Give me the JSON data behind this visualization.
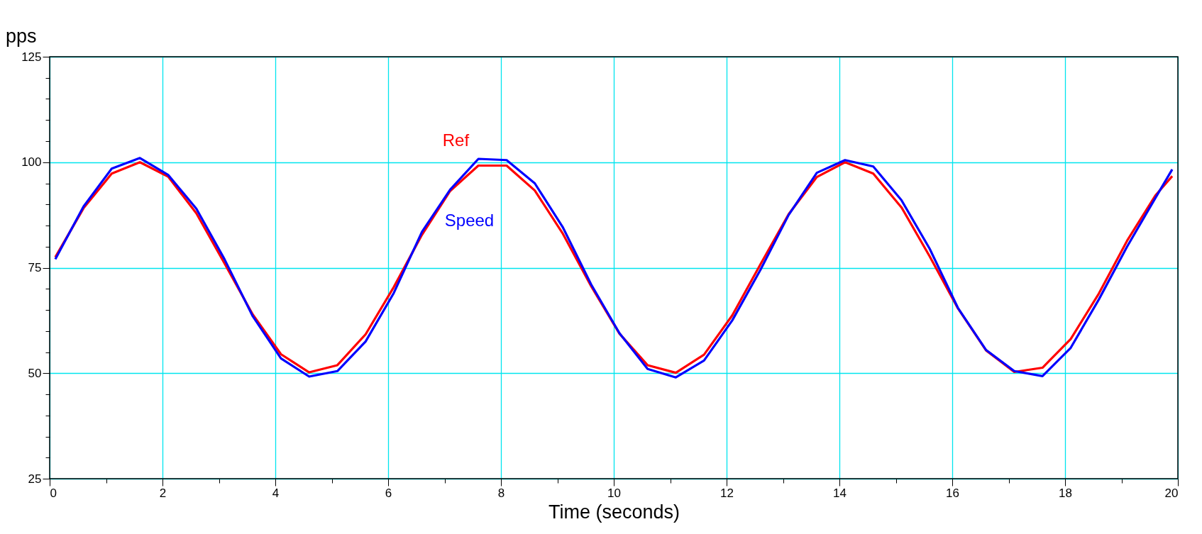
{
  "chart_data": {
    "type": "line",
    "xlabel": "Time (seconds)",
    "ylabel": "pps",
    "x": [
      0.1,
      0.6,
      1.1,
      1.6,
      2.1,
      2.6,
      3.1,
      3.6,
      4.1,
      4.6,
      5.1,
      5.6,
      6.1,
      6.6,
      7.1,
      7.6,
      8.1,
      8.6,
      9.1,
      9.6,
      10.1,
      10.6,
      11.1,
      11.6,
      12.1,
      12.6,
      13.1,
      13.6,
      14.1,
      14.6,
      15.1,
      15.6,
      16.1,
      16.6,
      17.1,
      17.6,
      18.1,
      18.6,
      19.1,
      19.6,
      19.9
    ],
    "series": [
      {
        "name": "Ref",
        "color": "#ff0000",
        "values": [
          77.5,
          89.1,
          97.3,
          100.0,
          96.6,
          87.9,
          76.0,
          63.9,
          54.5,
          50.2,
          51.9,
          59.2,
          70.4,
          82.8,
          93.2,
          99.2,
          99.2,
          93.3,
          83.0,
          70.6,
          59.4,
          51.9,
          50.1,
          54.4,
          63.7,
          75.8,
          87.7,
          96.5,
          100.0,
          97.3,
          89.3,
          77.7,
          65.4,
          55.4,
          50.3,
          51.3,
          58.1,
          68.9,
          81.4,
          92.1,
          96.7
        ]
      },
      {
        "name": "Speed",
        "color": "#0000ff",
        "values": [
          77.0,
          89.5,
          98.5,
          101.0,
          97.0,
          89.0,
          77.0,
          63.5,
          53.5,
          49.2,
          50.5,
          57.5,
          69.0,
          83.5,
          93.5,
          100.8,
          100.5,
          95.0,
          84.5,
          71.0,
          59.5,
          51.0,
          49.0,
          53.0,
          62.5,
          74.5,
          87.5,
          97.5,
          100.5,
          99.0,
          91.0,
          79.5,
          65.5,
          55.5,
          50.5,
          49.3,
          56.0,
          67.5,
          80.0,
          91.5,
          98.3
        ]
      }
    ],
    "xlim": [
      0,
      20
    ],
    "xticks": [
      0,
      {
        "value": 1,
        "label": null
      },
      2,
      {
        "value": 3,
        "label": null
      },
      4,
      {
        "value": 5,
        "label": null
      },
      6,
      {
        "value": 7,
        "label": null
      },
      8,
      {
        "value": 9,
        "label": null
      },
      10,
      {
        "value": 11,
        "label": null
      },
      12,
      {
        "value": 13,
        "label": null
      },
      14,
      {
        "value": 15,
        "label": null
      },
      16,
      {
        "value": 17,
        "label": null
      },
      18,
      {
        "value": 19,
        "label": null
      },
      20
    ],
    "ylim": [
      25,
      125
    ],
    "yticks": [
      25,
      {
        "value": 30,
        "label": null
      },
      {
        "value": 35,
        "label": null
      },
      {
        "value": 40,
        "label": null
      },
      {
        "value": 45,
        "label": null
      },
      50,
      {
        "value": 55,
        "label": null
      },
      {
        "value": 60,
        "label": null
      },
      {
        "value": 65,
        "label": null
      },
      {
        "value": 70,
        "label": null
      },
      75,
      {
        "value": 80,
        "label": null
      },
      {
        "value": 85,
        "label": null
      },
      {
        "value": 90,
        "label": null
      },
      {
        "value": 95,
        "label": null
      },
      100,
      {
        "value": 105,
        "label": null
      },
      {
        "value": 110,
        "label": null
      },
      {
        "value": 115,
        "label": null
      },
      {
        "value": 120,
        "label": null
      },
      125
    ],
    "grid": true,
    "legend": false,
    "line_style": "solid",
    "marker": "none"
  }
}
